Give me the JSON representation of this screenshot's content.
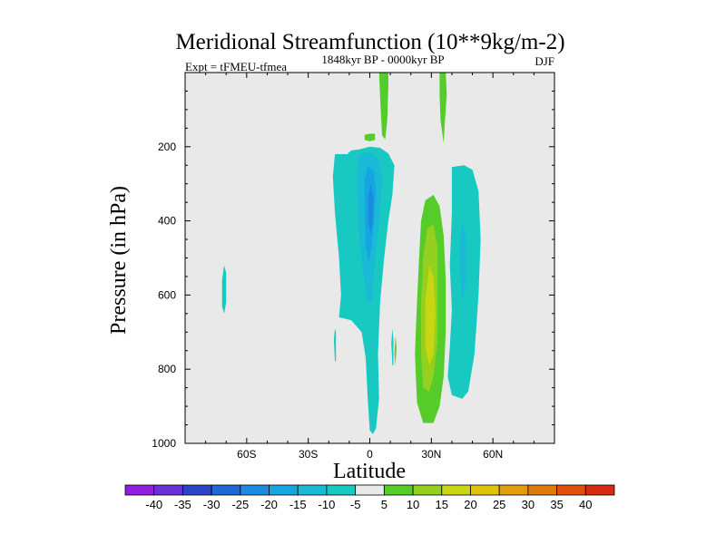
{
  "chart_data": {
    "type": "contour",
    "title": "Meridional Streamfunction (10**9kg/m-2)",
    "subtitle": "1848kyr BP - 0000kyr BP",
    "left_label": "Expt = tFMEU-tfmea",
    "right_label": "DJF",
    "xlabel": "Latitude",
    "ylabel": "Pressure (in hPa)",
    "xlim": [
      -90,
      90
    ],
    "ylim": [
      1000,
      0
    ],
    "x_ticks": [
      {
        "value": -60,
        "label": "60S"
      },
      {
        "value": -30,
        "label": "30S"
      },
      {
        "value": 0,
        "label": "0"
      },
      {
        "value": 30,
        "label": "30N"
      },
      {
        "value": 60,
        "label": "60N"
      }
    ],
    "y_ticks": [
      {
        "value": 200,
        "label": "200"
      },
      {
        "value": 400,
        "label": "400"
      },
      {
        "value": 600,
        "label": "600"
      },
      {
        "value": 800,
        "label": "800"
      },
      {
        "value": 1000,
        "label": "1000"
      }
    ],
    "background_color": "#e9e9e9",
    "colorbar": {
      "levels": [
        "-40",
        "-35",
        "-30",
        "-25",
        "-20",
        "-15",
        "-10",
        "-5",
        "5",
        "10",
        "15",
        "20",
        "25",
        "30",
        "35",
        "40"
      ],
      "colors": [
        "#8f1ee0",
        "#6a2fd8",
        "#2a43c9",
        "#1f68d6",
        "#1a8be0",
        "#14a6e0",
        "#1ab9d6",
        "#17c9c0",
        "#e9e9e9",
        "#55cc2a",
        "#93d11e",
        "#c8d614",
        "#e0c30c",
        "#e29d0b",
        "#e07a0b",
        "#e0500c",
        "#d62a12"
      ]
    },
    "regions": [
      {
        "name": "neg-main-outer",
        "value": -5,
        "color_index": 7,
        "points": [
          [
            -17,
            220
          ],
          [
            -11,
            220
          ],
          [
            -9,
            210
          ],
          [
            -5,
            207
          ],
          [
            0,
            200
          ],
          [
            5,
            203
          ],
          [
            9,
            218
          ],
          [
            12,
            250
          ],
          [
            11,
            330
          ],
          [
            9,
            400
          ],
          [
            7,
            500
          ],
          [
            5,
            620
          ],
          [
            4,
            760
          ],
          [
            4.5,
            880
          ],
          [
            3,
            960
          ],
          [
            1.5,
            975
          ],
          [
            0,
            965
          ],
          [
            -1,
            880
          ],
          [
            -2,
            770
          ],
          [
            -4,
            700
          ],
          [
            -9,
            668
          ],
          [
            -15,
            660
          ],
          [
            -14,
            600
          ],
          [
            -15,
            500
          ],
          [
            -17,
            380
          ],
          [
            -18,
            280
          ]
        ]
      },
      {
        "name": "neg-main-core1",
        "value": -10,
        "color_index": 6,
        "points": [
          [
            -5,
            220
          ],
          [
            0,
            215
          ],
          [
            4,
            230
          ],
          [
            6,
            280
          ],
          [
            5,
            380
          ],
          [
            3,
            480
          ],
          [
            1.5,
            570
          ],
          [
            1,
            620
          ],
          [
            -1,
            620
          ],
          [
            -3,
            550
          ],
          [
            -5,
            450
          ],
          [
            -6,
            330
          ],
          [
            -6,
            250
          ]
        ]
      },
      {
        "name": "neg-main-core2",
        "value": -15,
        "color_index": 5,
        "points": [
          [
            -1,
            250
          ],
          [
            2,
            265
          ],
          [
            3,
            320
          ],
          [
            2,
            400
          ],
          [
            1,
            470
          ],
          [
            -0.5,
            510
          ],
          [
            -2,
            470
          ],
          [
            -2.5,
            380
          ],
          [
            -2.5,
            290
          ]
        ]
      },
      {
        "name": "neg-main-core3",
        "value": -20,
        "color_index": 4,
        "points": [
          [
            0.5,
            300
          ],
          [
            1.8,
            340
          ],
          [
            1.5,
            400
          ],
          [
            0.5,
            440
          ],
          [
            -0.8,
            400
          ],
          [
            -0.8,
            340
          ]
        ]
      },
      {
        "name": "neg-nh-cell",
        "value": -5,
        "color_index": 7,
        "points": [
          [
            40,
            255
          ],
          [
            46,
            250
          ],
          [
            50,
            262
          ],
          [
            53,
            320
          ],
          [
            54,
            450
          ],
          [
            53,
            600
          ],
          [
            51,
            760
          ],
          [
            48,
            860
          ],
          [
            45,
            880
          ],
          [
            40,
            870
          ],
          [
            38,
            820
          ],
          [
            39,
            740
          ],
          [
            40,
            640
          ],
          [
            39,
            520
          ],
          [
            40,
            380
          ]
        ]
      },
      {
        "name": "neg-nh-cell-inner",
        "value": -10,
        "color_index": 6,
        "points": [
          [
            45,
            400
          ],
          [
            47,
            450
          ],
          [
            47,
            560
          ],
          [
            45,
            620
          ],
          [
            44,
            540
          ],
          [
            44,
            450
          ]
        ]
      },
      {
        "name": "neg-sh-speck",
        "value": -5,
        "color_index": 7,
        "points": [
          [
            -71,
            520
          ],
          [
            -70,
            540
          ],
          [
            -70,
            620
          ],
          [
            -71,
            650
          ],
          [
            -72,
            630
          ],
          [
            -72,
            560
          ]
        ]
      },
      {
        "name": "neg-speck-1",
        "value": -5,
        "color_index": 7,
        "points": [
          [
            -17,
            690
          ],
          [
            -16.5,
            700
          ],
          [
            -16.5,
            775
          ],
          [
            -17,
            780
          ],
          [
            -17.5,
            720
          ]
        ]
      },
      {
        "name": "neg-speck-2",
        "value": -5,
        "color_index": 7,
        "points": [
          [
            11,
            690
          ],
          [
            11.5,
            720
          ],
          [
            11.5,
            790
          ],
          [
            11,
            790
          ],
          [
            10.5,
            730
          ]
        ]
      },
      {
        "name": "pos-nh-cell",
        "value": 5,
        "color_index": 9,
        "points": [
          [
            27,
            345
          ],
          [
            31,
            330
          ],
          [
            34,
            360
          ],
          [
            36,
            440
          ],
          [
            37,
            560
          ],
          [
            37,
            700
          ],
          [
            36,
            820
          ],
          [
            34,
            900
          ],
          [
            31,
            945
          ],
          [
            26,
            945
          ],
          [
            23,
            890
          ],
          [
            22,
            760
          ],
          [
            23,
            620
          ],
          [
            24,
            500
          ],
          [
            25,
            400
          ]
        ]
      },
      {
        "name": "pos-nh-cell-inner",
        "value": 10,
        "color_index": 10,
        "points": [
          [
            28,
            420
          ],
          [
            31,
            410
          ],
          [
            33,
            470
          ],
          [
            33,
            600
          ],
          [
            33,
            720
          ],
          [
            31,
            820
          ],
          [
            29,
            860
          ],
          [
            26,
            850
          ],
          [
            25,
            760
          ],
          [
            25,
            620
          ],
          [
            26,
            500
          ]
        ]
      },
      {
        "name": "pos-nh-cell-core",
        "value": 15,
        "color_index": 11,
        "points": [
          [
            29,
            520
          ],
          [
            31,
            550
          ],
          [
            32,
            650
          ],
          [
            31,
            760
          ],
          [
            29,
            790
          ],
          [
            27,
            740
          ],
          [
            27,
            620
          ]
        ]
      },
      {
        "name": "pos-strat-1",
        "value": 5,
        "color_index": 9,
        "points": [
          [
            4.5,
            0
          ],
          [
            9,
            0
          ],
          [
            9,
            40
          ],
          [
            8.5,
            130
          ],
          [
            7.5,
            180
          ],
          [
            6,
            170
          ],
          [
            5.5,
            120
          ],
          [
            5,
            60
          ]
        ]
      },
      {
        "name": "pos-strat-2",
        "value": 5,
        "color_index": 9,
        "points": [
          [
            34,
            0
          ],
          [
            37,
            0
          ],
          [
            37.5,
            60
          ],
          [
            36.5,
            140
          ],
          [
            36,
            190
          ],
          [
            34.5,
            130
          ],
          [
            34,
            60
          ]
        ]
      },
      {
        "name": "pos-speck-1",
        "value": 5,
        "color_index": 9,
        "points": [
          [
            -2.5,
            168
          ],
          [
            0,
            165
          ],
          [
            2.5,
            165
          ],
          [
            2.5,
            182
          ],
          [
            0,
            185
          ],
          [
            -2.5,
            182
          ]
        ]
      },
      {
        "name": "pos-speck-2",
        "value": 5,
        "color_index": 9,
        "points": [
          [
            12.5,
            710
          ],
          [
            13,
            740
          ],
          [
            12.5,
            790
          ],
          [
            12,
            760
          ]
        ]
      }
    ]
  }
}
